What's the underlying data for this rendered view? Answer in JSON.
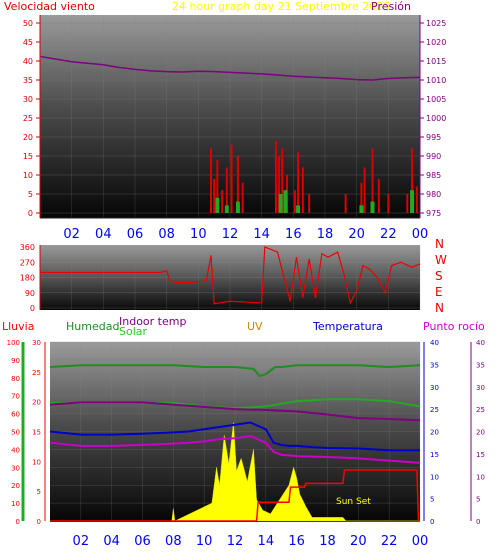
{
  "header": {
    "wind_speed_label": "Velocidad viento",
    "title": "24 hour graph day   21 Septiembre 2025",
    "pressure_label": "Presión"
  },
  "labels": {
    "rain": "Lluvia",
    "humidity": "Humedad",
    "indoor_temp": "Indoor temp",
    "solar": "Solar",
    "uv": "UV",
    "temperature": "Temperatura",
    "dew_point": "Punto rocío",
    "sun_set": "Sun Set"
  },
  "compass": [
    "N",
    "W",
    "S",
    "E",
    "N"
  ],
  "colors": {
    "wind_speed": "#dd0000",
    "title": "#ffff00",
    "pressure": "#800080",
    "direction": "#ee0000",
    "humidity": "#228b22",
    "indoor_temp": "#800080",
    "solar": "#ffff00",
    "uv": "#cc8800",
    "temperature": "#0000cc",
    "dew_point": "#cc00cc",
    "rain": "#ff0000",
    "hour_labels": "#0000ff"
  },
  "chart_data": [
    {
      "type": "line",
      "name": "wind_pressure",
      "x_ticks": [
        "02",
        "04",
        "06",
        "08",
        "10",
        "12",
        "14",
        "16",
        "18",
        "20",
        "22",
        "00"
      ],
      "y_left": {
        "label": "Velocidad viento",
        "ticks": [
          0,
          5,
          10,
          15,
          20,
          25,
          30,
          35,
          40,
          45,
          50
        ],
        "range": [
          0,
          50
        ]
      },
      "y_right": {
        "label": "Presión",
        "ticks": [
          975,
          980,
          985,
          990,
          995,
          1000,
          1005,
          1010,
          1015,
          1020,
          1025
        ],
        "range": [
          975,
          1025
        ]
      },
      "series": [
        {
          "name": "Presión",
          "x": [
            0,
            1,
            2,
            3,
            4,
            5,
            6,
            7,
            8,
            9,
            10,
            11,
            12,
            13,
            14,
            15,
            16,
            17,
            18,
            19,
            20,
            21,
            22,
            23,
            24
          ],
          "values": [
            1016.2,
            1015.5,
            1014.8,
            1014.4,
            1014.0,
            1013.3,
            1012.8,
            1012.4,
            1012.2,
            1012.1,
            1012.3,
            1012.2,
            1012.0,
            1011.8,
            1011.6,
            1011.3,
            1011.0,
            1010.8,
            1010.6,
            1010.4,
            1010.1,
            1010.0,
            1010.4,
            1010.6,
            1010.7
          ]
        },
        {
          "name": "Velocidad viento",
          "x": [
            10.8,
            11.0,
            11.2,
            11.5,
            11.8,
            12.1,
            12.5,
            12.8,
            14.9,
            15.1,
            15.3,
            15.6,
            16.1,
            16.3,
            16.6,
            17.0,
            19.3,
            20.3,
            20.5,
            21.0,
            21.4,
            22.0,
            23.2,
            23.5,
            23.8
          ],
          "values": [
            17,
            9,
            14,
            6,
            12,
            18,
            15,
            8,
            19,
            15,
            17,
            10,
            6,
            16,
            12,
            5,
            5,
            8,
            12,
            17,
            9,
            5,
            5,
            17,
            7
          ]
        },
        {
          "name": "wind_avg",
          "x": [
            11.2,
            11.8,
            12.5,
            15.2,
            15.5,
            16.3,
            20.3,
            21.0,
            23.5
          ],
          "values": [
            4,
            2,
            3,
            5,
            6,
            2,
            2,
            3,
            6
          ]
        }
      ]
    },
    {
      "type": "line",
      "name": "wind_direction",
      "x_ticks": [
        "02",
        "04",
        "06",
        "08",
        "10",
        "12",
        "14",
        "16",
        "18",
        "20",
        "22",
        "00"
      ],
      "y_left": {
        "ticks": [
          0,
          90,
          180,
          270,
          360
        ],
        "range": [
          0,
          360
        ]
      },
      "series": [
        {
          "name": "direction",
          "x": [
            0,
            2,
            4,
            6,
            7.6,
            8.0,
            8.2,
            8.6,
            9.5,
            10.5,
            10.8,
            11.0,
            12.0,
            13.0,
            14.0,
            14.2,
            15.0,
            15.8,
            16.2,
            16.6,
            17.0,
            17.4,
            17.8,
            18.2,
            18.8,
            19.2,
            19.6,
            20.0,
            20.4,
            20.8,
            21.3,
            21.8,
            22.2,
            22.8,
            23.5,
            24.0
          ],
          "values": [
            210,
            210,
            210,
            210,
            210,
            220,
            160,
            150,
            150,
            160,
            310,
            25,
            40,
            35,
            30,
            360,
            330,
            40,
            300,
            60,
            290,
            60,
            320,
            300,
            330,
            200,
            30,
            100,
            250,
            230,
            180,
            90,
            250,
            270,
            240,
            260
          ]
        }
      ]
    },
    {
      "type": "line",
      "name": "temperature_humidity_solar",
      "x_ticks": [
        "02",
        "04",
        "06",
        "08",
        "10",
        "12",
        "14",
        "16",
        "18",
        "20",
        "22",
        "00"
      ],
      "axis_rain": {
        "label": "Lluvia",
        "ticks": [
          0,
          10,
          20,
          30,
          40,
          50,
          60,
          70,
          80,
          90,
          100
        ],
        "range": [
          0,
          100
        ]
      },
      "axis_humidity": {
        "label": "Humedad",
        "ticks": [
          0,
          5,
          10,
          15,
          20,
          25,
          30
        ],
        "range": [
          0,
          30
        ]
      },
      "axis_uv": {
        "label": "UV",
        "ticks": [
          0,
          5,
          10,
          15,
          20,
          25,
          30,
          35,
          40
        ],
        "range": [
          0,
          40
        ]
      },
      "axis_temp": {
        "label": "Temperatura",
        "ticks": [
          0,
          5,
          10,
          15,
          20,
          25,
          30,
          35,
          40
        ],
        "range": [
          0,
          40
        ]
      },
      "series": [
        {
          "name": "Humedad",
          "x": [
            0,
            2,
            4,
            6,
            8,
            10,
            12,
            13.2,
            13.6,
            14.0,
            14.6,
            15.0,
            16,
            18,
            20,
            22,
            24
          ],
          "values": [
            86,
            87,
            87,
            87,
            87,
            86,
            86,
            85,
            81,
            82,
            86,
            86,
            87,
            87,
            87,
            86,
            87
          ]
        },
        {
          "name": "Indoor temp",
          "x": [
            0,
            2,
            4,
            6,
            8,
            10,
            12,
            14,
            16,
            18,
            20,
            22,
            24
          ],
          "values": [
            26.0,
            26.5,
            26.5,
            26.5,
            26.0,
            25.5,
            25.0,
            24.8,
            24.5,
            23.8,
            23.0,
            22.8,
            22.5
          ]
        },
        {
          "name": "Solar",
          "x": [
            0,
            2,
            4,
            6,
            8,
            10,
            12,
            14,
            16,
            18,
            20,
            22,
            24
          ],
          "values": [
            66,
            66,
            66,
            66,
            66,
            64,
            63,
            64,
            67,
            68,
            68,
            67,
            64
          ]
        },
        {
          "name": "Temperatura",
          "x": [
            0,
            2,
            4,
            6,
            8,
            9,
            10,
            11,
            12,
            13,
            14,
            14.5,
            15.0,
            15.5,
            16,
            17,
            18,
            20,
            22,
            24
          ],
          "values": [
            20.0,
            19.3,
            19.3,
            19.5,
            19.8,
            20.0,
            20.5,
            21.0,
            21.5,
            22.0,
            20.5,
            17.5,
            17.0,
            16.8,
            16.8,
            16.5,
            16.3,
            16.2,
            15.8,
            15.8
          ]
        },
        {
          "name": "Punto rocío",
          "x": [
            0,
            2,
            4,
            6,
            8,
            9,
            10,
            11,
            12,
            13,
            14,
            14.5,
            15.0,
            16,
            18,
            20,
            22,
            24
          ],
          "values": [
            17.5,
            16.8,
            16.8,
            17.0,
            17.3,
            17.5,
            17.8,
            18.3,
            18.5,
            19.0,
            17.5,
            15.5,
            14.8,
            14.5,
            14.3,
            14.0,
            13.5,
            13.0
          ]
        },
        {
          "name": "Lluvia",
          "x": [
            0,
            13.4,
            13.5,
            14.0,
            15.5,
            15.6,
            16.5,
            16.6,
            19.0,
            19.1,
            23.8,
            23.9
          ],
          "values": [
            0,
            0,
            0.35,
            0.35,
            0.35,
            0.63,
            0.63,
            0.7,
            0.7,
            0.95,
            0.95,
            0
          ]
        },
        {
          "name": "Solar radiation",
          "x": [
            0,
            7.9,
            8.0,
            8.1,
            10.5,
            10.8,
            11.0,
            11.3,
            11.6,
            11.9,
            12.1,
            12.4,
            12.8,
            13.2,
            13.4,
            13.8,
            14.3,
            15.5,
            15.8,
            16.0,
            16.2,
            16.6,
            17.0,
            19.0,
            19.2,
            24
          ],
          "values": [
            0,
            0,
            7,
            0,
            10,
            30,
            20,
            48,
            32,
            55,
            28,
            35,
            22,
            40,
            12,
            6,
            4,
            20,
            30,
            24,
            15,
            8,
            2,
            2,
            0,
            0
          ]
        }
      ]
    }
  ]
}
